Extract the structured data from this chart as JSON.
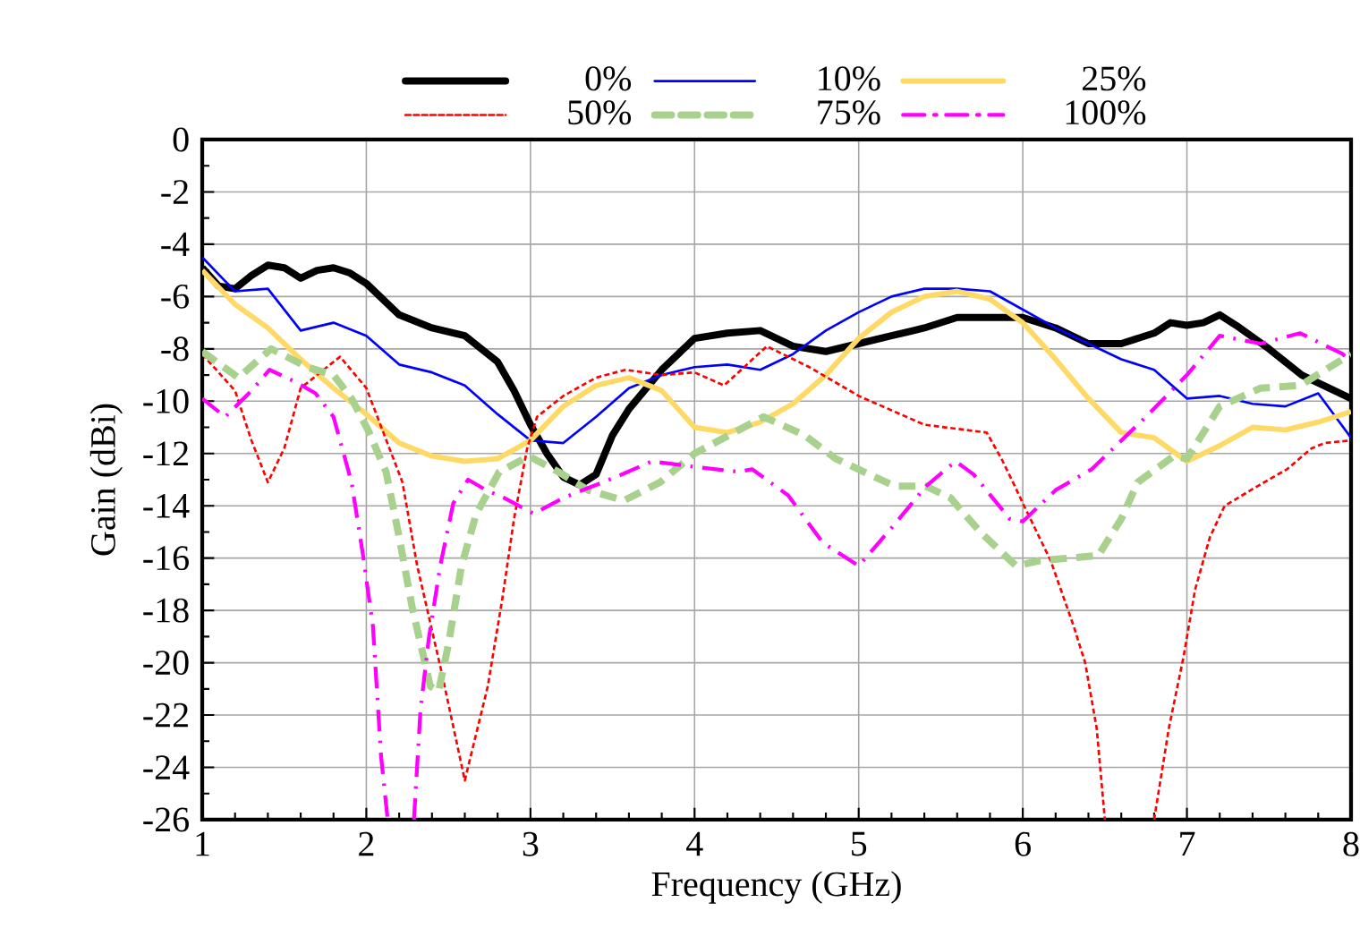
{
  "chart_data": {
    "type": "line",
    "xlabel": "Frequency (GHz)",
    "ylabel": "Gain (dBi)",
    "xlim": [
      1,
      8
    ],
    "ylim": [
      -26,
      0
    ],
    "xticks": [
      1,
      2,
      3,
      4,
      5,
      6,
      7,
      8
    ],
    "yticks": [
      -26,
      -24,
      -22,
      -20,
      -18,
      -16,
      -14,
      -12,
      -10,
      -8,
      -6,
      -4,
      -2,
      0
    ],
    "grid": true,
    "legend": "top",
    "marker": "none",
    "series": [
      {
        "name": "0%",
        "color": "#000000",
        "line_style": "solid",
        "x": [
          1.0,
          1.1,
          1.2,
          1.3,
          1.4,
          1.5,
          1.6,
          1.7,
          1.8,
          1.9,
          2.0,
          2.2,
          2.4,
          2.6,
          2.8,
          2.9,
          3.0,
          3.1,
          3.2,
          3.3,
          3.4,
          3.5,
          3.6,
          3.8,
          4.0,
          4.2,
          4.4,
          4.6,
          4.8,
          5.0,
          5.2,
          5.4,
          5.6,
          5.8,
          6.0,
          6.2,
          6.4,
          6.6,
          6.8,
          6.9,
          7.0,
          7.1,
          7.2,
          7.3,
          7.5,
          7.7,
          7.9,
          8.0
        ],
        "values": [
          -4.9,
          -5.6,
          -5.7,
          -5.2,
          -4.8,
          -4.9,
          -5.3,
          -5.0,
          -4.9,
          -5.1,
          -5.5,
          -6.7,
          -7.2,
          -7.5,
          -8.5,
          -9.6,
          -10.9,
          -12.0,
          -12.9,
          -13.2,
          -12.8,
          -11.3,
          -10.3,
          -8.8,
          -7.6,
          -7.4,
          -7.3,
          -7.9,
          -8.1,
          -7.8,
          -7.5,
          -7.2,
          -6.8,
          -6.8,
          -6.8,
          -7.2,
          -7.8,
          -7.8,
          -7.4,
          -7.0,
          -7.1,
          -7.0,
          -6.7,
          -7.1,
          -8.0,
          -9.0,
          -9.6,
          -9.9
        ]
      },
      {
        "name": "10%",
        "color": "#0000ff",
        "line_style": "solid",
        "x": [
          1.0,
          1.2,
          1.4,
          1.6,
          1.8,
          2.0,
          2.2,
          2.4,
          2.6,
          2.8,
          3.0,
          3.2,
          3.4,
          3.6,
          3.8,
          4.0,
          4.2,
          4.4,
          4.6,
          4.8,
          5.0,
          5.2,
          5.4,
          5.6,
          5.8,
          6.0,
          6.2,
          6.4,
          6.6,
          6.8,
          7.0,
          7.2,
          7.4,
          7.6,
          7.8,
          8.0
        ],
        "values": [
          -4.5,
          -5.8,
          -5.7,
          -7.3,
          -7.0,
          -7.5,
          -8.6,
          -8.9,
          -9.4,
          -10.5,
          -11.5,
          -11.6,
          -10.6,
          -9.5,
          -9.0,
          -8.7,
          -8.6,
          -8.8,
          -8.2,
          -7.3,
          -6.6,
          -6.0,
          -5.7,
          -5.7,
          -5.8,
          -6.5,
          -7.2,
          -7.8,
          -8.4,
          -8.8,
          -9.9,
          -9.8,
          -10.1,
          -10.2,
          -9.7,
          -11.4
        ]
      },
      {
        "name": "25%",
        "color": "#ffd966",
        "line_style": "solid",
        "x": [
          1.0,
          1.2,
          1.4,
          1.6,
          1.8,
          2.0,
          2.2,
          2.4,
          2.6,
          2.8,
          3.0,
          3.2,
          3.4,
          3.6,
          3.8,
          4.0,
          4.2,
          4.4,
          4.6,
          4.8,
          5.0,
          5.2,
          5.4,
          5.6,
          5.8,
          6.0,
          6.2,
          6.4,
          6.6,
          6.8,
          7.0,
          7.2,
          7.4,
          7.6,
          7.8,
          8.0
        ],
        "values": [
          -5.0,
          -6.3,
          -7.2,
          -8.4,
          -9.5,
          -10.5,
          -11.6,
          -12.1,
          -12.3,
          -12.2,
          -11.5,
          -10.2,
          -9.4,
          -9.1,
          -9.6,
          -11.0,
          -11.2,
          -10.8,
          -10.1,
          -9.0,
          -7.6,
          -6.6,
          -6.0,
          -5.8,
          -6.1,
          -7.0,
          -8.4,
          -9.9,
          -11.2,
          -11.4,
          -12.3,
          -11.7,
          -11.0,
          -11.1,
          -10.8,
          -10.4
        ]
      },
      {
        "name": "50%",
        "color": "#ff0000",
        "line_style": "dotted",
        "x": [
          1.0,
          1.2,
          1.3,
          1.4,
          1.5,
          1.6,
          1.84,
          2.0,
          2.22,
          2.31,
          2.46,
          2.6,
          2.74,
          2.83,
          2.9,
          2.98,
          3.04,
          3.2,
          3.4,
          3.58,
          3.8,
          4.0,
          4.18,
          4.44,
          4.7,
          5.0,
          5.4,
          5.78,
          5.87,
          5.94,
          6.0,
          6.17,
          6.31,
          6.38,
          6.45,
          6.5,
          6.65,
          6.8,
          6.89,
          6.98,
          7.05,
          7.14,
          7.23,
          7.43,
          7.61,
          7.76,
          7.84,
          8.0
        ],
        "values": [
          -8.2,
          -9.6,
          -11.5,
          -13.1,
          -11.8,
          -9.5,
          -8.3,
          -9.5,
          -13.1,
          -16.3,
          -20.4,
          -24.5,
          -20.9,
          -17.5,
          -14.5,
          -11.8,
          -10.6,
          -9.8,
          -9.1,
          -8.8,
          -9.0,
          -8.9,
          -9.4,
          -7.9,
          -8.7,
          -9.8,
          -10.9,
          -11.2,
          -12.2,
          -13.1,
          -13.9,
          -16.1,
          -18.6,
          -20.0,
          -22.5,
          -26,
          null,
          -26,
          -22.5,
          -19.75,
          -17.2,
          -15.2,
          -14.0,
          -13.25,
          -12.6,
          -11.8,
          -11.6,
          -11.5
        ]
      },
      {
        "name": "75%",
        "color": "#a9d18e",
        "line_style": "dashed",
        "x": [
          1.0,
          1.22,
          1.42,
          1.64,
          1.8,
          1.91,
          2.01,
          2.12,
          2.2,
          2.28,
          2.39,
          2.44,
          2.5,
          2.58,
          2.67,
          2.81,
          2.99,
          3.17,
          3.35,
          3.57,
          3.79,
          4.0,
          4.42,
          4.67,
          4.86,
          5.22,
          5.41,
          5.56,
          5.74,
          5.96,
          6.1,
          6.46,
          6.6,
          6.7,
          6.92,
          7.0,
          7.2,
          7.45,
          7.69,
          8.0
        ],
        "values": [
          -8.1,
          -9.1,
          -8.0,
          -8.7,
          -9.0,
          -9.9,
          -11.1,
          -12.7,
          -15.2,
          -17.9,
          -20.9,
          -21.1,
          -19.3,
          -16.3,
          -14.3,
          -12.7,
          -12.1,
          -12.7,
          -13.4,
          -13.8,
          -13.1,
          -12.0,
          -10.6,
          -11.3,
          -12.2,
          -13.25,
          -13.25,
          -13.7,
          -15.0,
          -16.3,
          -16.1,
          -15.9,
          -14.5,
          -13.1,
          -12.1,
          -12.2,
          -10.2,
          -9.5,
          -9.4,
          -8.2
        ]
      },
      {
        "name": "100%",
        "color": "#ff00ff",
        "line_style": "dashdot",
        "x": [
          1.0,
          1.14,
          1.3,
          1.41,
          1.58,
          1.69,
          1.8,
          1.91,
          1.98,
          2.04,
          2.09,
          2.13,
          2.2,
          2.29,
          2.33,
          2.38,
          2.45,
          2.53,
          2.62,
          2.73,
          2.84,
          3.02,
          3.2,
          3.52,
          3.74,
          3.99,
          4.27,
          4.35,
          4.57,
          4.78,
          5.0,
          5.22,
          5.41,
          5.59,
          5.7,
          5.92,
          6.0,
          6.2,
          6.42,
          6.75,
          7.0,
          7.2,
          7.45,
          7.69,
          7.95,
          8.0
        ],
        "values": [
          -9.9,
          -10.6,
          -9.6,
          -8.8,
          -9.3,
          -9.7,
          -10.6,
          -13.1,
          -15.9,
          -18.6,
          -23.6,
          -26,
          null,
          -26,
          -21.8,
          -19.1,
          -16.3,
          -13.9,
          -13.0,
          -13.4,
          -13.7,
          -14.3,
          -13.7,
          -12.9,
          -12.3,
          -12.5,
          -12.7,
          -12.6,
          -13.6,
          -15.4,
          -16.3,
          -14.7,
          -13.25,
          -12.3,
          -12.8,
          -14.5,
          -14.6,
          -13.4,
          -12.6,
          -10.6,
          -9.0,
          -7.5,
          -7.8,
          -7.4,
          -8.2,
          -8.5
        ]
      }
    ]
  }
}
